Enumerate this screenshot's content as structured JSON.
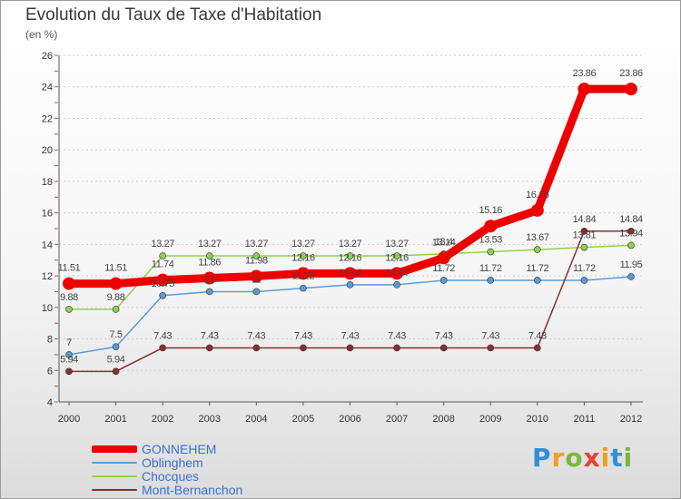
{
  "chart_data": {
    "type": "line",
    "title": "Evolution du Taux de Taxe d'Habitation",
    "ylabel": "(en %)",
    "xlabel": "",
    "ylim": [
      4,
      26
    ],
    "yticks": [
      "4",
      "6",
      "8",
      "10",
      "12",
      "14",
      "16",
      "18",
      "20",
      "22",
      "24",
      "26"
    ],
    "categories": [
      "2000",
      "2001",
      "2002",
      "2003",
      "2004",
      "2005",
      "2006",
      "2007",
      "2008",
      "2009",
      "2010",
      "2011",
      "2012"
    ],
    "series": [
      {
        "name": "GONNEHEM",
        "color": "#ee0000",
        "values": [
          11.51,
          11.51,
          11.74,
          11.86,
          11.98,
          12.16,
          12.16,
          12.16,
          13.14,
          15.16,
          16.16,
          23.86,
          23.86
        ],
        "labels": [
          "11.51",
          "11.51",
          "11.74",
          "11.86",
          "11.98",
          "12.16",
          "12.16",
          "12.16",
          "13.14",
          "15.16",
          "16.16",
          "23.86",
          "23.86"
        ]
      },
      {
        "name": "Oblinghem",
        "color": "#5b9bd5",
        "values": [
          7,
          7.5,
          10.75,
          11,
          11,
          11.22,
          11.44,
          11.44,
          11.72,
          11.72,
          11.72,
          11.72,
          11.95
        ],
        "labels": [
          "7",
          "7.5",
          "10.75",
          "11",
          "11",
          "11.22",
          "11.44",
          "11.44",
          "11.72",
          "11.72",
          "11.72",
          "11.72",
          "11.95"
        ]
      },
      {
        "name": "Chocques",
        "color": "#8fd14f",
        "values": [
          9.88,
          9.88,
          13.27,
          13.27,
          13.27,
          13.27,
          13.27,
          13.27,
          13.4,
          13.53,
          13.67,
          13.81,
          13.94
        ],
        "labels": [
          "9.88",
          "9.88",
          "13.27",
          "13.27",
          "13.27",
          "13.27",
          "13.27",
          "13.27",
          "13.4",
          "13.53",
          "13.67",
          "13.81",
          "13.94"
        ]
      },
      {
        "name": "Mont-Bernanchon",
        "color": "#8b2e2e",
        "values": [
          5.94,
          5.94,
          7.43,
          7.43,
          7.43,
          7.43,
          7.43,
          7.43,
          7.43,
          7.43,
          7.43,
          14.84,
          14.84
        ],
        "labels": [
          "5.94",
          "5.94",
          "7.43",
          "7.43",
          "7.43",
          "7.43",
          "7.43",
          "7.43",
          "7.43",
          "7.43",
          "7.43",
          "14.84",
          "14.84"
        ]
      }
    ],
    "legend_position": "bottom-left"
  },
  "brand": {
    "letters": [
      "P",
      "r",
      "o",
      "x",
      "i",
      "t",
      "i"
    ]
  }
}
